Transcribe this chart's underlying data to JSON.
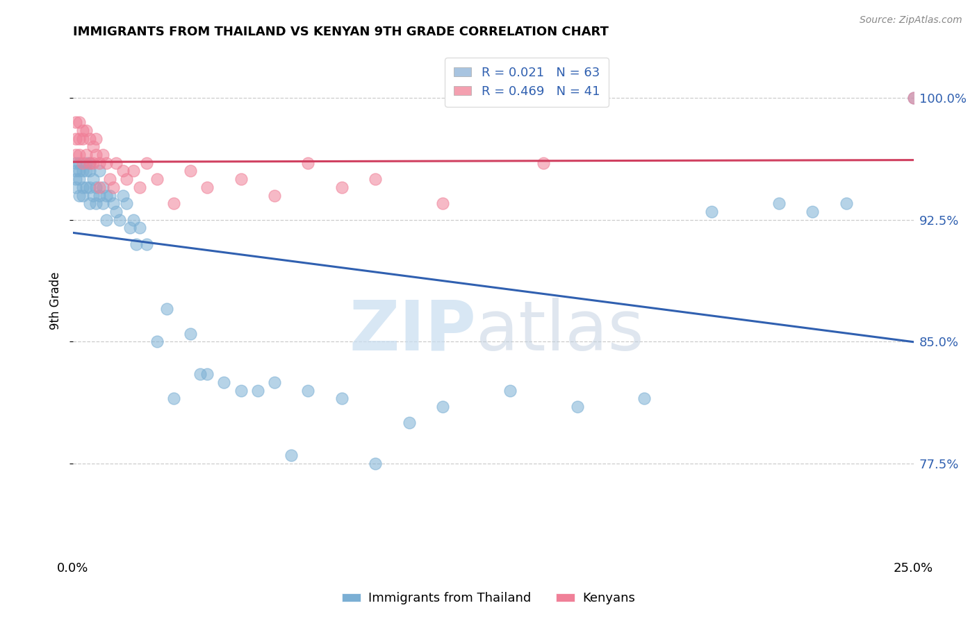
{
  "title": "IMMIGRANTS FROM THAILAND VS KENYAN 9TH GRADE CORRELATION CHART",
  "source": "Source: ZipAtlas.com",
  "ylabel": "9th Grade",
  "ytick_vals": [
    0.775,
    0.85,
    0.925,
    1.0
  ],
  "ytick_labels": [
    "77.5%",
    "85.0%",
    "92.5%",
    "100.0%"
  ],
  "xlim": [
    0,
    0.25
  ],
  "ylim": [
    0.72,
    1.03
  ],
  "blue_color": "#7bafd4",
  "pink_color": "#f08098",
  "trend_blue": "#3060b0",
  "trend_pink": "#d04060",
  "legend_color1": "#a8c4e0",
  "legend_color2": "#f4a0b0",
  "thailand_x": [
    0.001,
    0.001,
    0.001,
    0.001,
    0.002,
    0.002,
    0.002,
    0.002,
    0.003,
    0.003,
    0.003,
    0.004,
    0.004,
    0.004,
    0.005,
    0.005,
    0.005,
    0.005,
    0.006,
    0.006,
    0.007,
    0.007,
    0.008,
    0.008,
    0.009,
    0.009,
    0.01,
    0.01,
    0.011,
    0.012,
    0.013,
    0.014,
    0.015,
    0.016,
    0.017,
    0.018,
    0.019,
    0.02,
    0.022,
    0.025,
    0.028,
    0.03,
    0.035,
    0.038,
    0.04,
    0.045,
    0.05,
    0.055,
    0.06,
    0.065,
    0.07,
    0.08,
    0.09,
    0.1,
    0.11,
    0.13,
    0.15,
    0.17,
    0.19,
    0.21,
    0.22,
    0.23,
    0.25
  ],
  "thailand_y": [
    0.96,
    0.955,
    0.95,
    0.945,
    0.96,
    0.955,
    0.95,
    0.94,
    0.955,
    0.945,
    0.94,
    0.96,
    0.955,
    0.945,
    0.96,
    0.955,
    0.945,
    0.935,
    0.95,
    0.94,
    0.945,
    0.935,
    0.955,
    0.94,
    0.945,
    0.935,
    0.94,
    0.925,
    0.94,
    0.935,
    0.93,
    0.925,
    0.94,
    0.935,
    0.92,
    0.925,
    0.91,
    0.92,
    0.91,
    0.85,
    0.87,
    0.815,
    0.855,
    0.83,
    0.83,
    0.825,
    0.82,
    0.82,
    0.825,
    0.78,
    0.82,
    0.815,
    0.775,
    0.8,
    0.81,
    0.82,
    0.81,
    0.815,
    0.93,
    0.935,
    0.93,
    0.935,
    1.0
  ],
  "kenya_x": [
    0.001,
    0.001,
    0.001,
    0.002,
    0.002,
    0.002,
    0.003,
    0.003,
    0.003,
    0.004,
    0.004,
    0.005,
    0.005,
    0.006,
    0.006,
    0.007,
    0.007,
    0.008,
    0.008,
    0.009,
    0.01,
    0.011,
    0.012,
    0.013,
    0.015,
    0.016,
    0.018,
    0.02,
    0.022,
    0.025,
    0.03,
    0.035,
    0.04,
    0.05,
    0.06,
    0.07,
    0.08,
    0.09,
    0.11,
    0.14,
    0.25
  ],
  "kenya_y": [
    0.985,
    0.975,
    0.965,
    0.985,
    0.975,
    0.965,
    0.98,
    0.975,
    0.96,
    0.98,
    0.965,
    0.975,
    0.96,
    0.97,
    0.96,
    0.975,
    0.965,
    0.96,
    0.945,
    0.965,
    0.96,
    0.95,
    0.945,
    0.96,
    0.955,
    0.95,
    0.955,
    0.945,
    0.96,
    0.95,
    0.935,
    0.955,
    0.945,
    0.95,
    0.94,
    0.96,
    0.945,
    0.95,
    0.935,
    0.96,
    1.0
  ]
}
